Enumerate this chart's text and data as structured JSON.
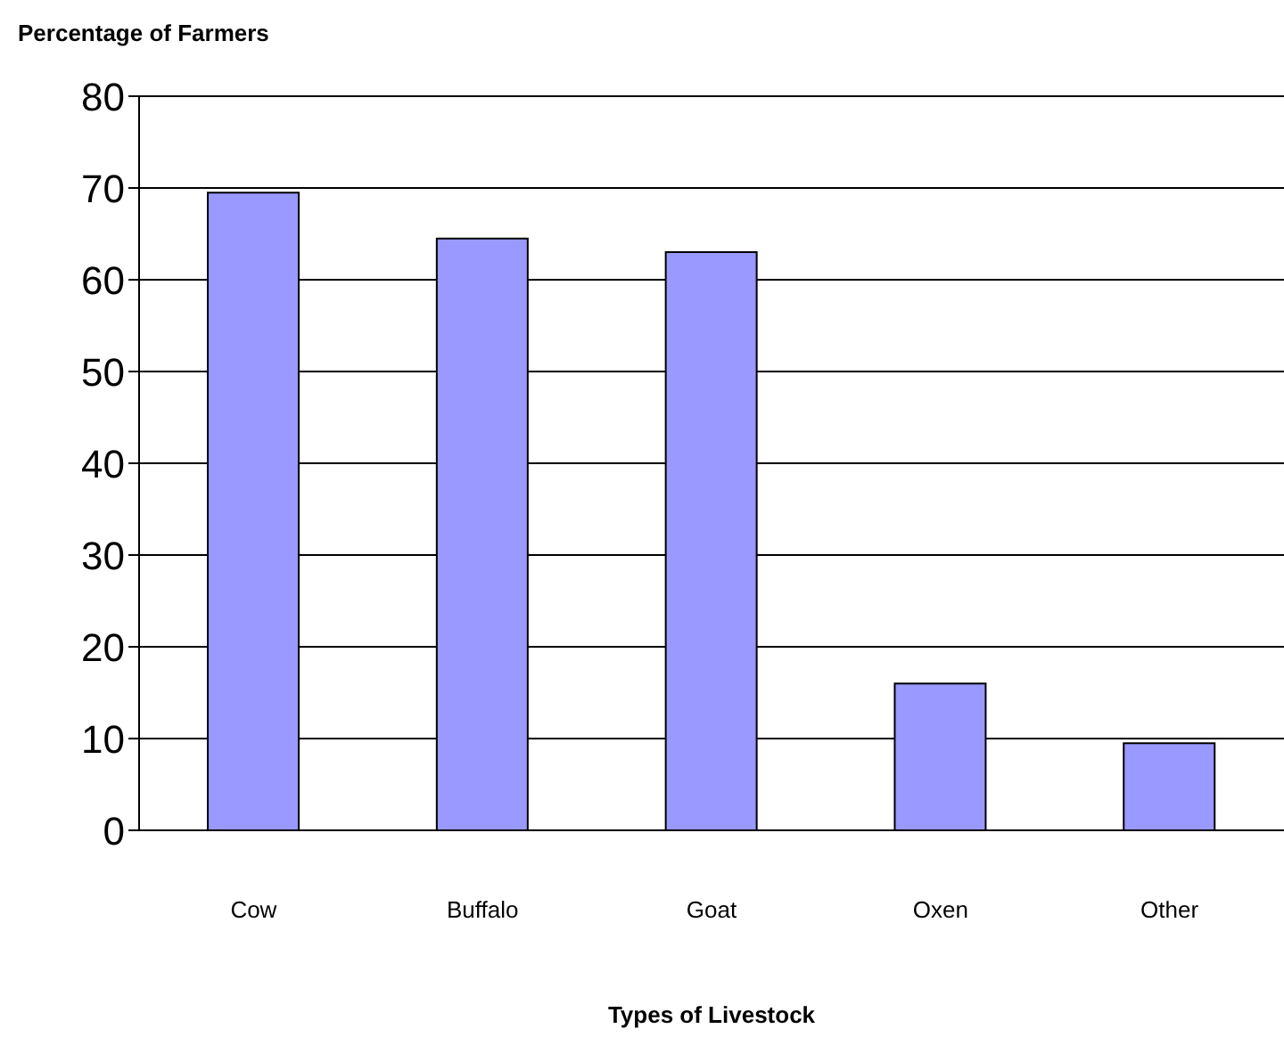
{
  "chart_data": {
    "type": "bar",
    "ylabel": "Percentage of Farmers",
    "xlabel": "Types of Livestock",
    "categories": [
      "Cow",
      "Buffalo",
      "Goat",
      "Oxen",
      "Other"
    ],
    "values": [
      69.5,
      64.5,
      63,
      16,
      9.5
    ],
    "color": "#9999ff",
    "ylim": [
      0,
      80
    ],
    "yticks": [
      0,
      10,
      20,
      30,
      40,
      50,
      60,
      70,
      80
    ],
    "grid": "y",
    "legend": false
  }
}
